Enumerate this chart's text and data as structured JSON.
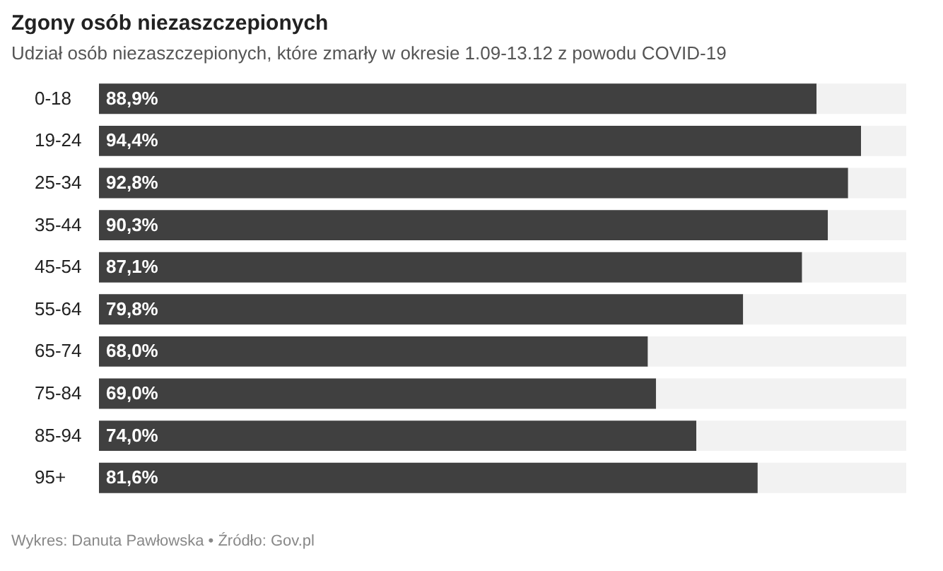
{
  "chart_data": {
    "type": "bar",
    "orientation": "horizontal",
    "stacked": true,
    "title": "Zgony osób niezaszczepionych",
    "subtitle": "Udział osób niezaszczepionych, które zmarły w okresie 1.09-13.12 z powodu COVID-19",
    "categories": [
      "0-18",
      "19-24",
      "25-34",
      "35-44",
      "45-54",
      "55-64",
      "65-74",
      "75-84",
      "85-94",
      "95+"
    ],
    "series": [
      {
        "color": "#404040",
        "values": [
          88.9,
          94.4,
          92.8,
          90.3,
          87.1,
          79.8,
          68.0,
          69.0,
          74.0,
          81.6
        ],
        "value_labels": [
          "88,9%",
          "94,4%",
          "92,8%",
          "90,3%",
          "87,1%",
          "79,8%",
          "68,0%",
          "69,0%",
          "74,0%",
          "81,6%"
        ]
      },
      {
        "color": "#f2f2f2",
        "values": [
          11.1,
          5.6,
          7.2,
          9.7,
          12.9,
          20.2,
          32.0,
          31.0,
          26.0,
          18.4
        ]
      }
    ],
    "xlim": [
      0,
      100
    ],
    "tick_labels": "y",
    "legend": false,
    "annotations": [
      "Wykres: Danuta Pawłowska • Źródło: Gov.pl"
    ]
  }
}
